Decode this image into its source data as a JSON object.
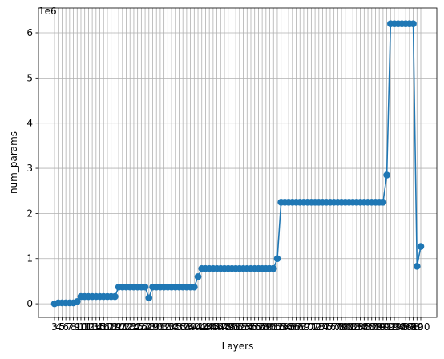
{
  "chart_data": {
    "type": "line",
    "title": "",
    "xlabel": "Layers",
    "ylabel": "num_params",
    "y_multiplier_label": "1e6",
    "grid": true,
    "legend": "none",
    "marker": "circle",
    "series_color": "#1f77b4",
    "x_tick_labels": [
      "3",
      "4",
      "5",
      "6",
      "7",
      "8",
      "9",
      "10",
      "11",
      "12",
      "13",
      "14",
      "15",
      "16",
      "17",
      "18",
      "19",
      "20",
      "21",
      "22",
      "23",
      "24",
      "25",
      "26",
      "27",
      "28",
      "29",
      "30",
      "31",
      "32",
      "33",
      "34",
      "35",
      "36",
      "37",
      "38",
      "39",
      "40",
      "41",
      "42",
      "43",
      "44",
      "45",
      "46",
      "47",
      "48",
      "49",
      "50",
      "51",
      "52",
      "53",
      "54",
      "55",
      "56",
      "57",
      "58",
      "59",
      "60",
      "61",
      "62",
      "63",
      "64",
      "65",
      "66",
      "67",
      "68",
      "69",
      "70",
      "71",
      "72",
      "73",
      "74",
      "75",
      "76",
      "77",
      "78",
      "79",
      "80",
      "81",
      "82",
      "83",
      "84",
      "85",
      "86",
      "87",
      "88",
      "89",
      "90",
      "91",
      "92",
      "93",
      "94",
      "95",
      "96",
      "97",
      "98",
      "99",
      "100"
    ],
    "xlim": [
      3,
      100
    ],
    "ylim": [
      -0.3,
      6.55
    ],
    "y_ticks": [
      0,
      1,
      2,
      3,
      4,
      5,
      6
    ],
    "series": [
      {
        "x": [
          3,
          4,
          5,
          6,
          7,
          8,
          9,
          10,
          11,
          12,
          13,
          14,
          15,
          16,
          17,
          18,
          19,
          20,
          21,
          22,
          23,
          24,
          25,
          26,
          27,
          28,
          29,
          30,
          31,
          32,
          33,
          34,
          35,
          36,
          37,
          38,
          39,
          40,
          41,
          42,
          43,
          44,
          45,
          46,
          47,
          48,
          49,
          50,
          51,
          52,
          53,
          54,
          55,
          56,
          57,
          58,
          59,
          60,
          61,
          62,
          63,
          64,
          65,
          66,
          67,
          68,
          69,
          70,
          71,
          72,
          73,
          74,
          75,
          76,
          77,
          78,
          79,
          80,
          81,
          82,
          83,
          84,
          85,
          86,
          87,
          88,
          89,
          90,
          91,
          92,
          93,
          94,
          95,
          96,
          97,
          98,
          99,
          100
        ],
        "y": [
          0,
          0.02,
          0.02,
          0.02,
          0.02,
          0.02,
          0.05,
          0.16,
          0.16,
          0.16,
          0.16,
          0.16,
          0.16,
          0.16,
          0.16,
          0.16,
          0.16,
          0.37,
          0.37,
          0.37,
          0.37,
          0.37,
          0.37,
          0.37,
          0.37,
          0.13,
          0.37,
          0.37,
          0.37,
          0.37,
          0.37,
          0.37,
          0.37,
          0.37,
          0.37,
          0.37,
          0.37,
          0.37,
          0.6,
          0.78,
          0.78,
          0.78,
          0.78,
          0.78,
          0.78,
          0.78,
          0.78,
          0.78,
          0.78,
          0.78,
          0.78,
          0.78,
          0.78,
          0.78,
          0.78,
          0.78,
          0.78,
          0.78,
          0.78,
          1.0,
          2.25,
          2.25,
          2.25,
          2.25,
          2.25,
          2.25,
          2.25,
          2.25,
          2.25,
          2.25,
          2.25,
          2.25,
          2.25,
          2.25,
          2.25,
          2.25,
          2.25,
          2.25,
          2.25,
          2.25,
          2.25,
          2.25,
          2.25,
          2.25,
          2.25,
          2.25,
          2.25,
          2.25,
          2.85,
          6.2,
          6.2,
          6.2,
          6.2,
          6.2,
          6.2,
          6.2,
          0.83,
          1.27
        ]
      }
    ]
  }
}
